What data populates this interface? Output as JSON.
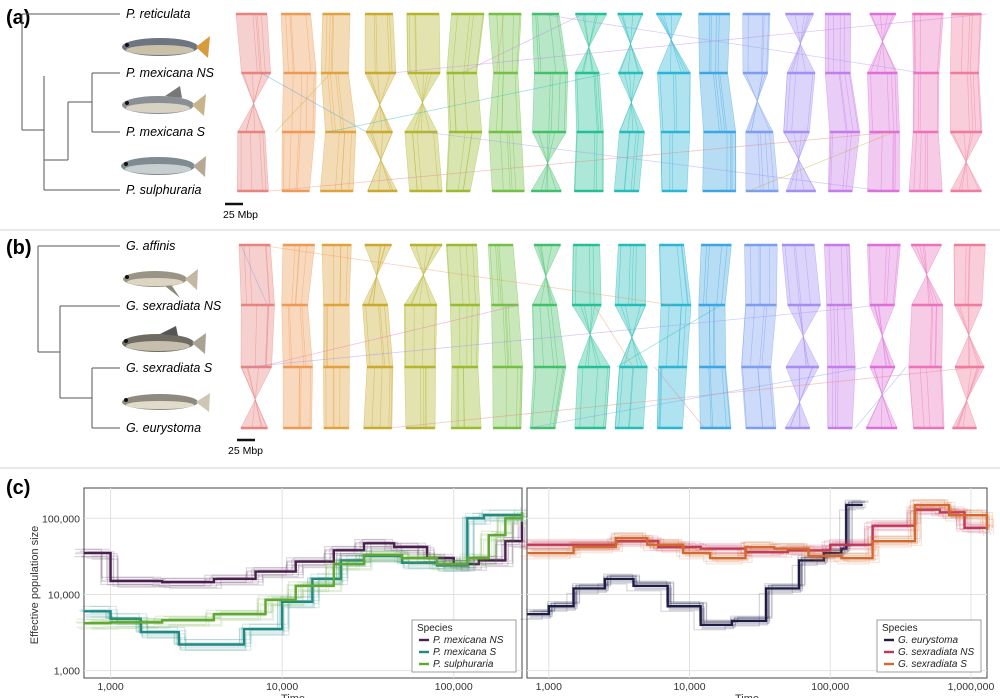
{
  "panels": {
    "a": {
      "letter": "(a)",
      "species": [
        "P. reticulata",
        "P. mexicana NS",
        "P. mexicana S",
        "P. sulphuraria"
      ],
      "scale_label": "25 Mbp"
    },
    "b": {
      "letter": "(b)",
      "species": [
        "G. affinis",
        "G. sexradiata NS",
        "G. sexradiata S",
        "G. eurystoma"
      ],
      "scale_label": "25 Mbp"
    },
    "c": {
      "letter": "(c)"
    }
  },
  "synteny_colors": [
    "#e8837f",
    "#ee9a55",
    "#e0a23c",
    "#c9aa2e",
    "#b4b52c",
    "#9abb2f",
    "#74c046",
    "#42bf6a",
    "#25bf95",
    "#23bcb7",
    "#2ab5d4",
    "#3ea5e3",
    "#7c9df0",
    "#a48ef2",
    "#c47cea",
    "#dd70d7",
    "#ea73bb",
    "#ef7b9d"
  ],
  "chart_data": [
    {
      "type": "line",
      "panel": "c-left",
      "xlabel": "Time",
      "ylabel": "Effective population size",
      "xscale": "log",
      "yscale": "log",
      "xlim": [
        700,
        250000
      ],
      "ylim": [
        800,
        250000
      ],
      "x_ticks": [
        "1,000",
        "10,000",
        "100,000"
      ],
      "y_ticks": [
        "1,000",
        "10,000",
        "100,000"
      ],
      "legend_title": "Species",
      "series": [
        {
          "name": "P. mexicana NS",
          "color": "#4a1f4f",
          "points": [
            [
              700,
              35000
            ],
            [
              1000,
              35000
            ],
            [
              1000,
              15000
            ],
            [
              2000,
              14500
            ],
            [
              4000,
              16000
            ],
            [
              7000,
              20000
            ],
            [
              12000,
              27000
            ],
            [
              20000,
              38000
            ],
            [
              30000,
              47000
            ],
            [
              45000,
              42000
            ],
            [
              70000,
              30000
            ],
            [
              100000,
              25000
            ],
            [
              140000,
              28000
            ],
            [
              200000,
              50000
            ],
            [
              250000,
              90000
            ]
          ]
        },
        {
          "name": "P. mexicana S",
          "color": "#1f8a84",
          "points": [
            [
              700,
              6000
            ],
            [
              1000,
              4800
            ],
            [
              1500,
              3200
            ],
            [
              2500,
              2200
            ],
            [
              4000,
              2200
            ],
            [
              6000,
              3500
            ],
            [
              10000,
              8000
            ],
            [
              15000,
              16000
            ],
            [
              22000,
              28000
            ],
            [
              30000,
              32000
            ],
            [
              50000,
              26000
            ],
            [
              80000,
              24000
            ],
            [
              110000,
              24000
            ],
            [
              120000,
              100000
            ],
            [
              150000,
              110000
            ],
            [
              250000,
              120000
            ]
          ]
        },
        {
          "name": "P. sulphuraria",
          "color": "#5fa832",
          "points": [
            [
              700,
              4200
            ],
            [
              1000,
              4300
            ],
            [
              2000,
              4600
            ],
            [
              4000,
              5500
            ],
            [
              8000,
              8500
            ],
            [
              12000,
              13000
            ],
            [
              20000,
              25000
            ],
            [
              30000,
              33000
            ],
            [
              50000,
              30000
            ],
            [
              80000,
              25000
            ],
            [
              120000,
              30000
            ],
            [
              160000,
              60000
            ],
            [
              200000,
              100000
            ],
            [
              250000,
              120000
            ]
          ]
        }
      ]
    },
    {
      "type": "line",
      "panel": "c-right",
      "xlabel": "Time",
      "xscale": "log",
      "yscale": "log",
      "xlim": [
        700,
        1300000
      ],
      "ylim": [
        800,
        250000
      ],
      "x_ticks": [
        "1,000",
        "10,000",
        "100,000",
        "1,000,000"
      ],
      "legend_title": "Species",
      "series": [
        {
          "name": "G. eurystoma",
          "color": "#1e1b45",
          "points": [
            [
              700,
              5500
            ],
            [
              1000,
              7000
            ],
            [
              1500,
              12000
            ],
            [
              2500,
              16000
            ],
            [
              4000,
              13000
            ],
            [
              7000,
              7000
            ],
            [
              12000,
              4000
            ],
            [
              20000,
              4500
            ],
            [
              35000,
              12000
            ],
            [
              60000,
              28000
            ],
            [
              90000,
              35000
            ],
            [
              120000,
              40000
            ],
            [
              130000,
              150000
            ],
            [
              170000,
              150000
            ]
          ]
        },
        {
          "name": "G. sexradiata NS",
          "color": "#c0365a",
          "points": [
            [
              700,
              45000
            ],
            [
              1500,
              45000
            ],
            [
              3000,
              50000
            ],
            [
              6000,
              42000
            ],
            [
              12000,
              40000
            ],
            [
              25000,
              36000
            ],
            [
              50000,
              38000
            ],
            [
              100000,
              45000
            ],
            [
              200000,
              80000
            ],
            [
              400000,
              130000
            ],
            [
              600000,
              120000
            ],
            [
              900000,
              75000
            ],
            [
              1300000,
              70000
            ]
          ]
        },
        {
          "name": "G. sexradiata S",
          "color": "#d4692f",
          "points": [
            [
              700,
              35000
            ],
            [
              1500,
              42000
            ],
            [
              3000,
              55000
            ],
            [
              5000,
              45000
            ],
            [
              9000,
              35000
            ],
            [
              14000,
              30000
            ],
            [
              25000,
              42000
            ],
            [
              40000,
              40000
            ],
            [
              70000,
              32000
            ],
            [
              120000,
              30000
            ],
            [
              200000,
              50000
            ],
            [
              400000,
              150000
            ],
            [
              700000,
              110000
            ],
            [
              1300000,
              70000
            ]
          ]
        }
      ]
    }
  ]
}
